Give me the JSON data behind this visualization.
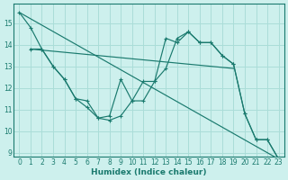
{
  "bg_color": "#cdf0ed",
  "grid_color": "#aaddd8",
  "line_color": "#1a7a6e",
  "xlabel": "Humidex (Indice chaleur)",
  "xlim": [
    -0.5,
    23.5
  ],
  "ylim": [
    8.8,
    15.9
  ],
  "yticks": [
    9,
    10,
    11,
    12,
    13,
    14,
    15
  ],
  "xticks": [
    0,
    1,
    2,
    3,
    4,
    5,
    6,
    7,
    8,
    9,
    10,
    11,
    12,
    13,
    14,
    15,
    16,
    17,
    18,
    19,
    20,
    21,
    22,
    23
  ],
  "line1_x": [
    0,
    1,
    2,
    3,
    4,
    5,
    6,
    7,
    8,
    9,
    10,
    11,
    12,
    13,
    14,
    15,
    16,
    17,
    18,
    19,
    20,
    21,
    22,
    23
  ],
  "line1_y": [
    15.5,
    14.8,
    13.8,
    13.0,
    12.4,
    11.5,
    11.1,
    10.6,
    10.5,
    10.7,
    11.4,
    12.3,
    12.3,
    14.3,
    14.1,
    14.6,
    14.1,
    14.1,
    13.5,
    13.1,
    10.8,
    9.6,
    9.6,
    8.7
  ],
  "line2_x": [
    1,
    2,
    3,
    4,
    5,
    6,
    7,
    8,
    9,
    10,
    11,
    12,
    13,
    14,
    15,
    16,
    17,
    18,
    19
  ],
  "line2_y": [
    13.8,
    13.75,
    13.7,
    13.65,
    13.6,
    13.55,
    13.5,
    13.45,
    13.4,
    13.35,
    13.3,
    13.25,
    13.2,
    13.15,
    13.1,
    13.05,
    13.0,
    12.95,
    12.9
  ],
  "line3_x": [
    1,
    2,
    3,
    4,
    5,
    6,
    7,
    8,
    9,
    10,
    11,
    12,
    13,
    14,
    15,
    16,
    17,
    18,
    19,
    20,
    21,
    22,
    23
  ],
  "line3_y": [
    13.8,
    13.8,
    13.0,
    12.4,
    11.5,
    11.4,
    10.6,
    10.7,
    12.4,
    11.4,
    11.4,
    12.3,
    12.9,
    14.3,
    14.6,
    14.1,
    14.1,
    13.5,
    13.1,
    10.8,
    9.6,
    9.6,
    8.7
  ],
  "line4_x": [
    0,
    23
  ],
  "line4_y": [
    15.5,
    8.7
  ]
}
